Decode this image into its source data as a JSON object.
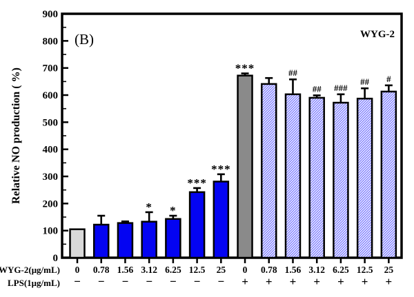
{
  "figure": {
    "panel_label": "(B)",
    "legend_label": "WYG-2",
    "y_axis_label": "Relative NO production ( %)",
    "dose_row_label": "WYG-2(μg/mL)",
    "lps_row_label": "LPS(1μg/mL)"
  },
  "colors": {
    "blue": "#0404f2",
    "gray_light": "#d9d9d9",
    "gray_dark": "#8a8a8a",
    "hatch_stroke": "#6f6fff",
    "bar_border": "#000000",
    "error_bar": "#000000",
    "marker_star": "#1c1c33",
    "marker_hash": "#3d3d59",
    "axis": "#000000"
  },
  "chart_data": {
    "type": "bar",
    "title": "",
    "xlabel": "",
    "ylabel": "Relative NO production ( %)",
    "ylim": [
      0,
      900
    ],
    "y_major_ticks": [
      0,
      100,
      200,
      300,
      400,
      500,
      600,
      700,
      800,
      900
    ],
    "y_minor_step": 50,
    "grid": false,
    "legend_position": "top-right",
    "categories": [
      "0",
      "0.78",
      "1.56",
      "3.12",
      "6.25",
      "12.5",
      "25",
      "0",
      "0.78",
      "1.56",
      "3.12",
      "6.25",
      "12.5",
      "25"
    ],
    "groups": [
      {
        "dose": "0",
        "lps": "−",
        "value": 105,
        "error": 0,
        "marker": "",
        "style": "gray-light"
      },
      {
        "dose": "0.78",
        "lps": "−",
        "value": 122,
        "error": 33,
        "marker": "",
        "style": "blue"
      },
      {
        "dose": "1.56",
        "lps": "−",
        "value": 128,
        "error": 6,
        "marker": "",
        "style": "blue"
      },
      {
        "dose": "3.12",
        "lps": "−",
        "value": 133,
        "error": 35,
        "marker": "*",
        "style": "blue"
      },
      {
        "dose": "6.25",
        "lps": "−",
        "value": 143,
        "error": 12,
        "marker": "*",
        "style": "blue"
      },
      {
        "dose": "12.5",
        "lps": "−",
        "value": 242,
        "error": 15,
        "marker": "***",
        "style": "blue"
      },
      {
        "dose": "25",
        "lps": "−",
        "value": 281,
        "error": 27,
        "marker": "***",
        "style": "blue"
      },
      {
        "dose": "0",
        "lps": "+",
        "value": 672,
        "error": 8,
        "marker": "***",
        "style": "gray-dark"
      },
      {
        "dose": "0.78",
        "lps": "+",
        "value": 641,
        "error": 22,
        "marker": "",
        "style": "hatch"
      },
      {
        "dose": "1.56",
        "lps": "+",
        "value": 603,
        "error": 55,
        "marker": "##",
        "style": "hatch"
      },
      {
        "dose": "3.12",
        "lps": "+",
        "value": 590,
        "error": 9,
        "marker": "##",
        "style": "hatch"
      },
      {
        "dose": "6.25",
        "lps": "+",
        "value": 572,
        "error": 31,
        "marker": "###",
        "style": "hatch"
      },
      {
        "dose": "12.5",
        "lps": "+",
        "value": 587,
        "error": 38,
        "marker": "##",
        "style": "hatch"
      },
      {
        "dose": "25",
        "lps": "+",
        "value": 613,
        "error": 23,
        "marker": "#",
        "style": "hatch"
      }
    ]
  }
}
